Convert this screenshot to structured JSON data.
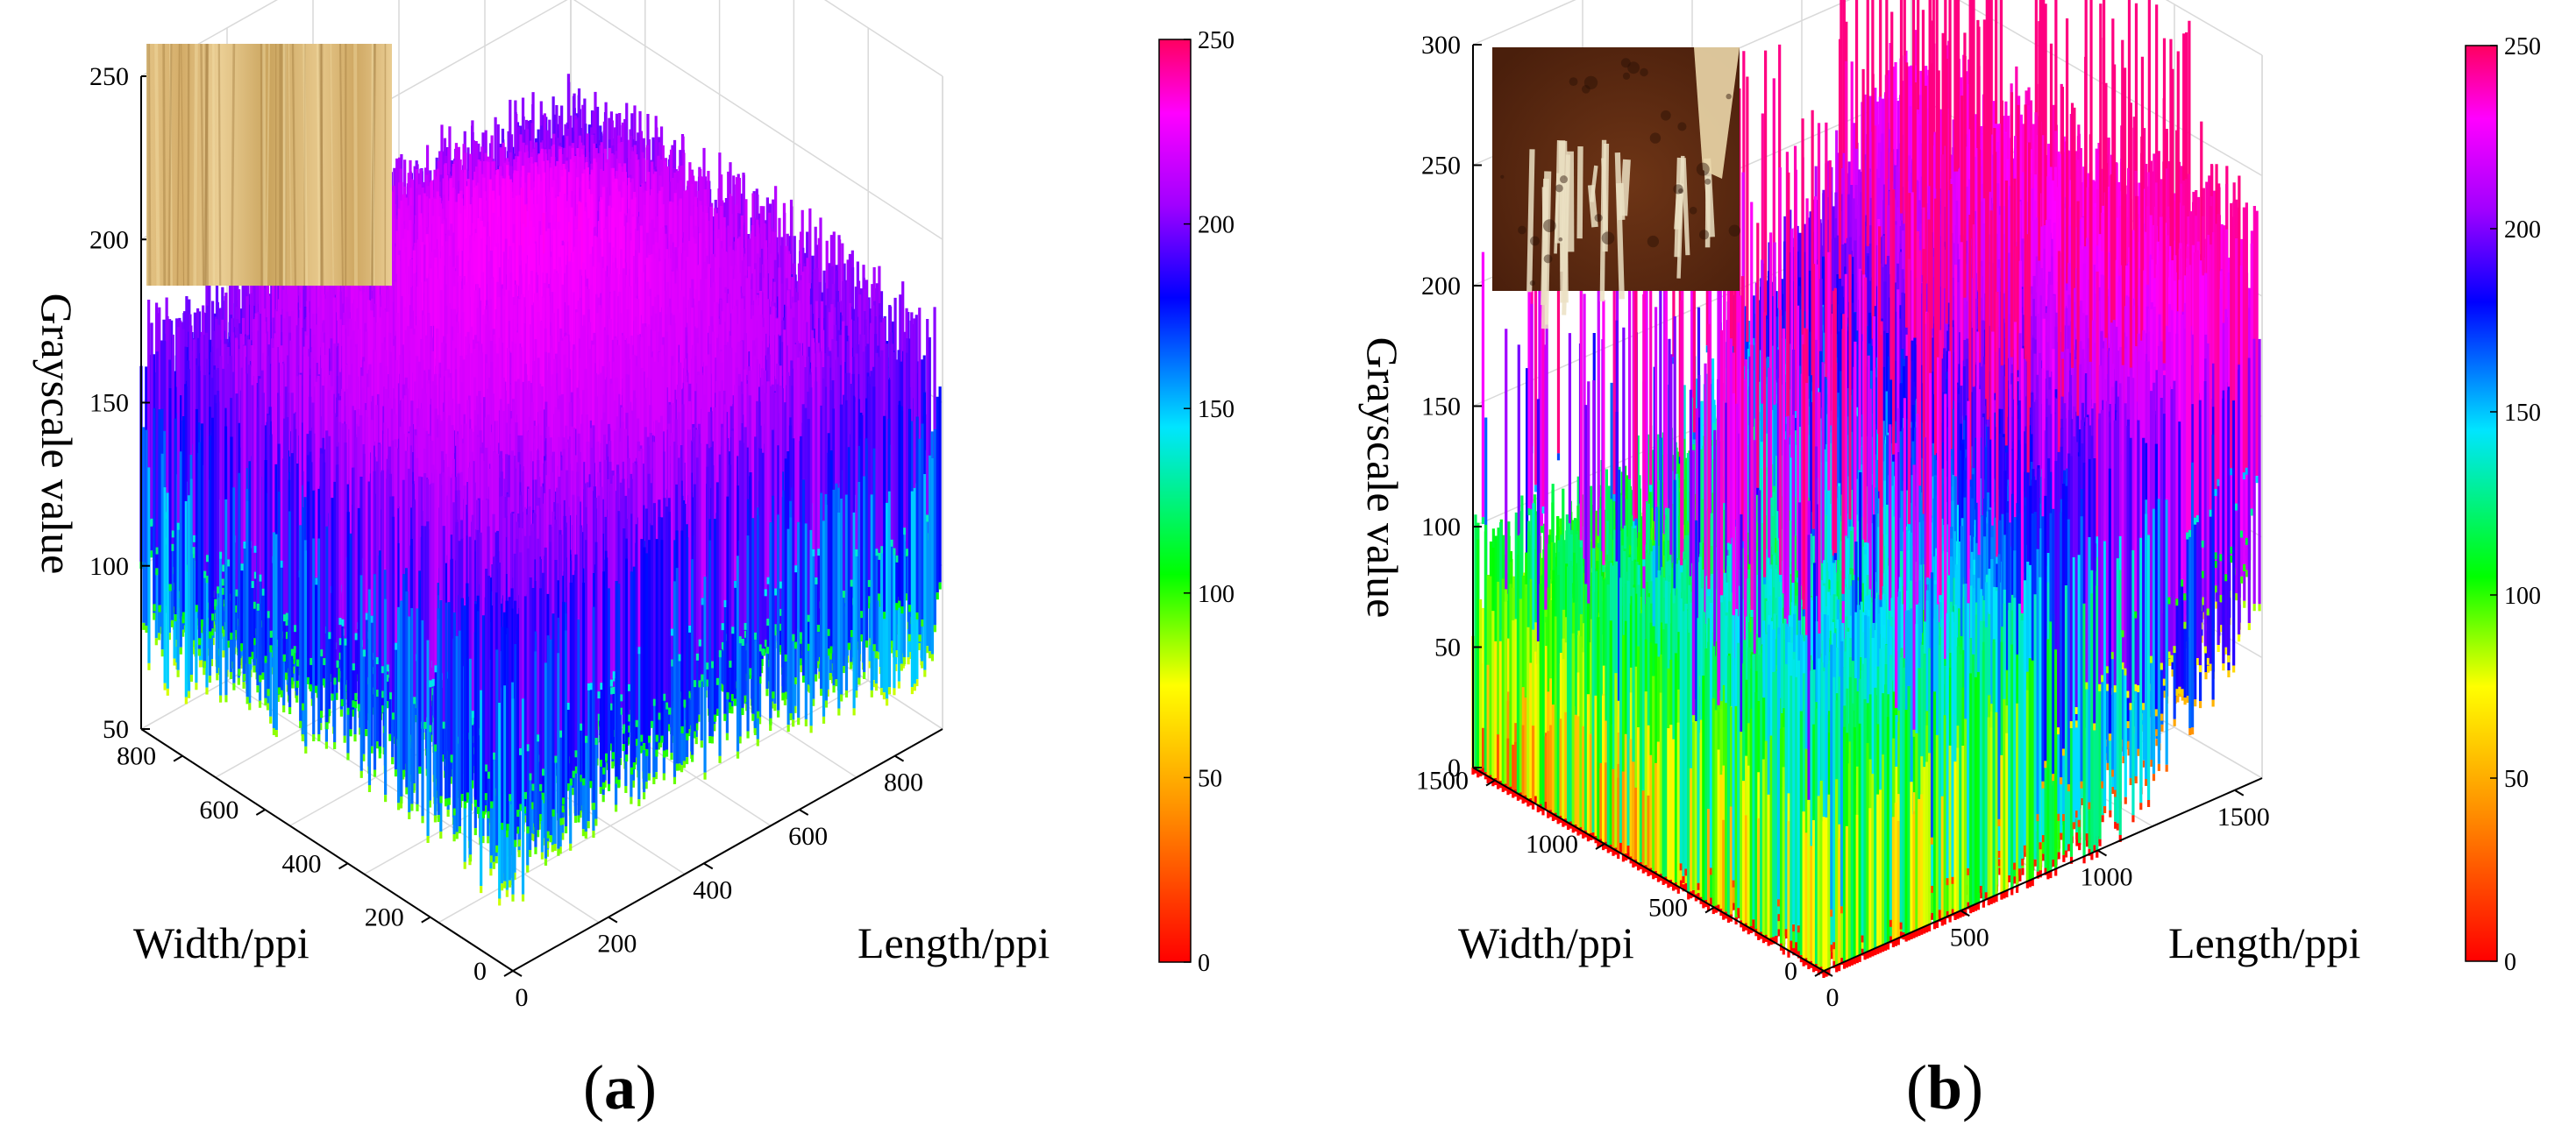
{
  "figure": {
    "panels": [
      {
        "label": "(a)",
        "letter": "a"
      },
      {
        "label": "(b)",
        "letter": "b"
      }
    ]
  },
  "chart_data": [
    {
      "type": "surface3d",
      "panel": "(a)",
      "zlabel": "Grayscale value",
      "xlabel": "Width/ppi",
      "ylabel": "Length/ppi",
      "zticks": [
        "50",
        "100",
        "150",
        "200",
        "250"
      ],
      "zlim": [
        50,
        250
      ],
      "xticks": [
        "0",
        "200",
        "400",
        "600",
        "800"
      ],
      "xlim": [
        0,
        900
      ],
      "yticks": [
        "0",
        "200",
        "400",
        "600",
        "800"
      ],
      "ylim": [
        0,
        900
      ],
      "colorbar": {
        "min": 0,
        "max": 250,
        "ticks": [
          "0",
          "50",
          "100",
          "150",
          "200",
          "250"
        ]
      },
      "colormap": [
        "#ff0000",
        "#ff8c00",
        "#ffff00",
        "#00ff00",
        "#00e5ff",
        "#0000ff",
        "#c000ff",
        "#ff00ff",
        "#ff0080"
      ],
      "surface": {
        "base_level": 170,
        "peak_level": 215,
        "noise_amplitude": 55,
        "grain": "vertical"
      },
      "inset": {
        "description_colors": {
          "light": "#e8c98a",
          "mid": "#d2aa64",
          "dark": "#b88e48"
        }
      }
    },
    {
      "type": "surface3d",
      "panel": "(b)",
      "zlabel": "Grayscale value",
      "xlabel": "Width/ppi",
      "ylabel": "Length/ppi",
      "zticks": [
        "0",
        "50",
        "100",
        "150",
        "200",
        "250",
        "300"
      ],
      "zlim": [
        0,
        300
      ],
      "xticks": [
        "0",
        "500",
        "1000",
        "1500"
      ],
      "xlim": [
        0,
        1600
      ],
      "yticks": [
        "0",
        "500",
        "1000",
        "1500"
      ],
      "ylim": [
        0,
        1600
      ],
      "colorbar": {
        "min": 0,
        "max": 250,
        "ticks": [
          "0",
          "50",
          "100",
          "150",
          "200",
          "250"
        ]
      },
      "colormap": [
        "#ff0000",
        "#ff8c00",
        "#ffff00",
        "#00ff00",
        "#00e5ff",
        "#0000ff",
        "#c000ff",
        "#ff00ff",
        "#ff0080"
      ],
      "surface": {
        "base_level": 60,
        "peak_level": 210,
        "noise_amplitude": 90,
        "grain": "vertical"
      },
      "inset": {
        "description_colors": {
          "dark": "#5a2a12",
          "mid": "#7a3a18",
          "light": "#e6dcc2"
        }
      }
    }
  ]
}
